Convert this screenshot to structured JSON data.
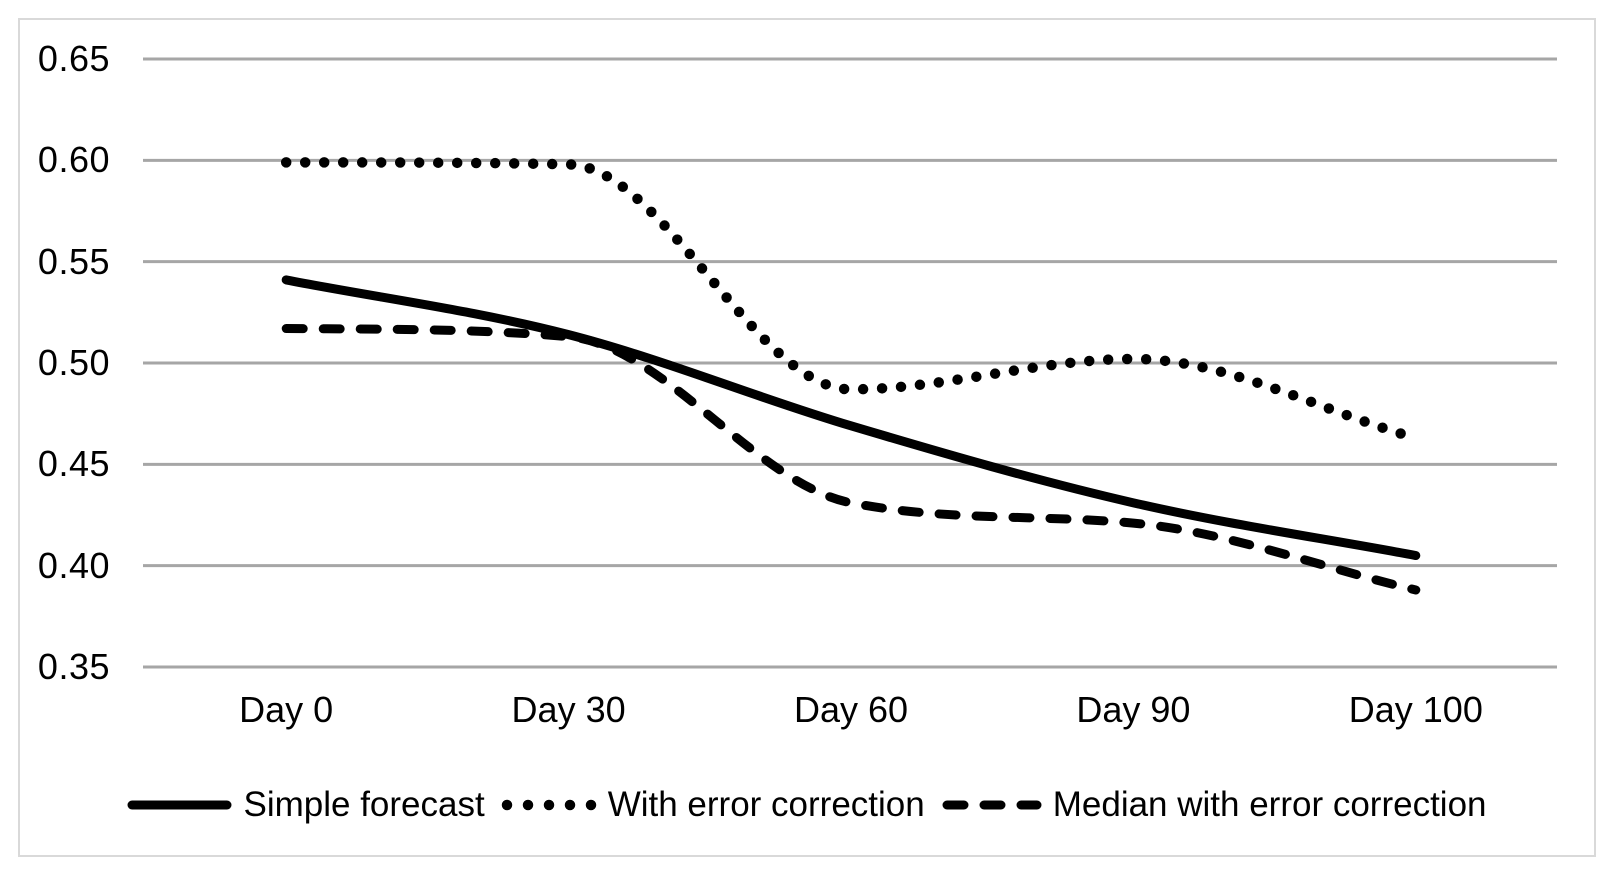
{
  "chart_data": {
    "type": "line",
    "title": "",
    "xlabel": "",
    "ylabel": "",
    "categories": [
      "Day 0",
      "Day 30",
      "Day 60",
      "Day 90",
      "Day 100"
    ],
    "series": [
      {
        "name": "Simple forecast",
        "line_style": "solid",
        "color": "#000000",
        "values": [
          0.541,
          0.514,
          0.469,
          0.431,
          0.405
        ]
      },
      {
        "name": "With error correction",
        "line_style": "dotted",
        "color": "#000000",
        "values": [
          0.599,
          0.598,
          0.487,
          0.502,
          0.463
        ]
      },
      {
        "name": "Median with error correction",
        "line_style": "dashed",
        "color": "#000000",
        "values": [
          0.517,
          0.513,
          0.431,
          0.421,
          0.388
        ]
      }
    ],
    "y_ticks": [
      "0.65",
      "0.60",
      "0.55",
      "0.50",
      "0.45",
      "0.40",
      "0.35"
    ],
    "ylim": [
      0.35,
      0.65
    ],
    "grid": "horizontal",
    "legend_position": "bottom",
    "smoothed_lines": true,
    "gridline_color": "#a6a6a6",
    "frame_border_color": "#d9d9d9",
    "background_color": "#ffffff",
    "text_color": "#000000"
  }
}
